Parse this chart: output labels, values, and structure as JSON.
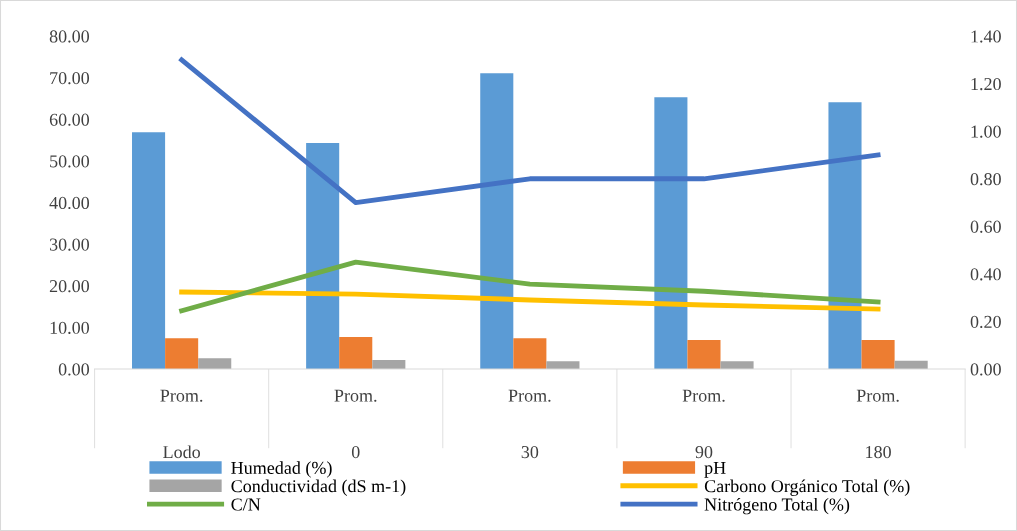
{
  "chart_data": {
    "type": "bar",
    "categories": [
      "Lodo",
      "0",
      "30",
      "90",
      "180"
    ],
    "series": [
      {
        "name": "Humedad (%)",
        "color": "#5b9bd5",
        "values": [
          56.9,
          54.3,
          71.1,
          65.3,
          64.1
        ]
      },
      {
        "name": "pH",
        "color": "#ed7d31",
        "values": [
          7.4,
          7.7,
          7.4,
          7.0,
          7.0
        ]
      },
      {
        "name": "Conductividad (dS m-1)",
        "color": "#a5a5a5",
        "values": [
          2.6,
          2.2,
          1.9,
          1.9,
          2.0
        ]
      },
      {
        "name": "Carbono Orgánico Total (%)",
        "type": "line",
        "color": "#ffc000",
        "values": [
          18.5,
          18.0,
          16.6,
          15.4,
          14.4
        ]
      },
      {
        "name": "C/N",
        "type": "line",
        "color": "#70ad47",
        "values": [
          14.0,
          25.7,
          20.4,
          18.7,
          16.1
        ]
      },
      {
        "name": "Nitrógeno Total (%)",
        "type": "line",
        "axis": "y2",
        "color": "#4472c4",
        "values": [
          1.3,
          0.7,
          0.8,
          0.8,
          0.9
        ]
      }
    ],
    "annotations": [
      "Prom.",
      "Prom.",
      "Prom.",
      "Prom.",
      "Prom."
    ],
    "ylim": [
      0,
      80
    ],
    "yticks": [
      {
        "value": 0,
        "label": "0.00"
      },
      {
        "value": 10,
        "label": "10.00"
      },
      {
        "value": 20,
        "label": "20.00"
      },
      {
        "value": 30,
        "label": "30.00"
      },
      {
        "value": 40,
        "label": "40.00"
      },
      {
        "value": 50,
        "label": "50.00"
      },
      {
        "value": 60,
        "label": "60.00"
      },
      {
        "value": 70,
        "label": "70.00"
      },
      {
        "value": 80,
        "label": "80.00"
      }
    ],
    "y2lim": [
      0,
      1.4
    ],
    "y2ticks": [
      {
        "value": 0,
        "label": "0.00"
      },
      {
        "value": 0.2,
        "label": "0.20"
      },
      {
        "value": 0.4,
        "label": "0.40"
      },
      {
        "value": 0.6,
        "label": "0.60"
      },
      {
        "value": 0.8,
        "label": "0.80"
      },
      {
        "value": 1.0,
        "label": "1.00"
      },
      {
        "value": 1.2,
        "label": "1.20"
      },
      {
        "value": 1.4,
        "label": "1.40"
      }
    ],
    "grid": false,
    "legend": "bottom",
    "marker": "none",
    "line_style": "solid"
  }
}
